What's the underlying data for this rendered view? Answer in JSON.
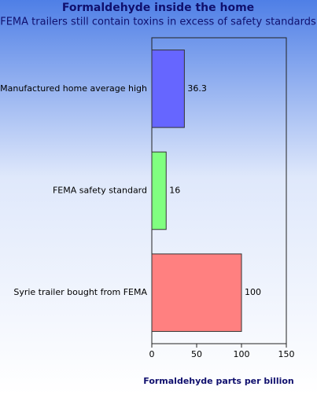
{
  "chart_data": {
    "type": "hbar",
    "title": "Formaldehyde inside the home",
    "subtitle": "FEMA trailers still contain toxins in excess of safety standards",
    "x_label": "Formaldehyde parts per billion",
    "categories": [
      "Manufactured home average high",
      "FEMA safety standard",
      "Syrie trailer bought from FEMA"
    ],
    "values": [
      36.3,
      16,
      100
    ],
    "colors": [
      "#6666ff",
      "#80ff80",
      "#ff8080"
    ],
    "xlim": [
      0,
      150
    ],
    "xticks": [
      0,
      50,
      100,
      150
    ]
  }
}
